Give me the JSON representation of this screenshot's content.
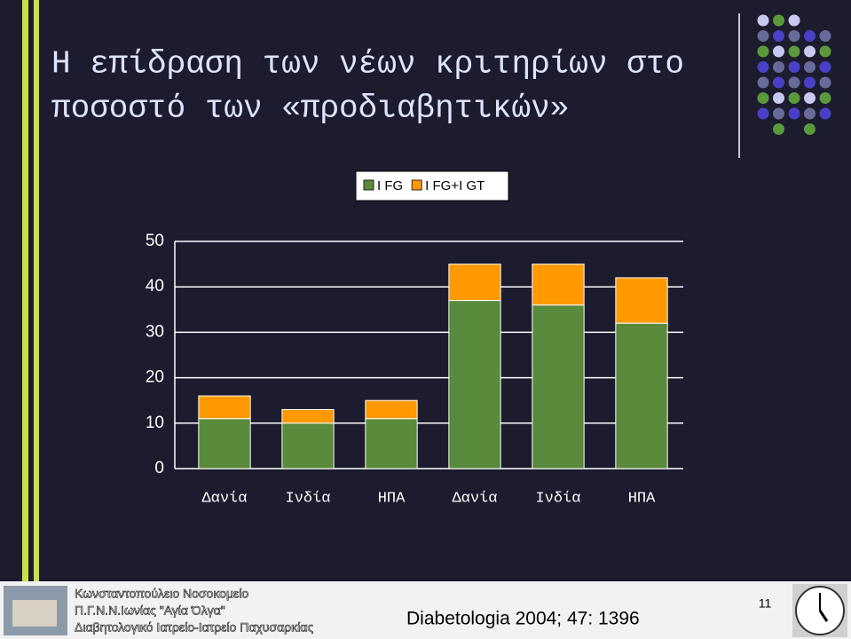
{
  "slide": {
    "title_lines": [
      "Η επίδραση των νέων κριτηρίων στο",
      "ποσοστό των «προδιαβητικών»"
    ],
    "footer_lines": [
      "Κωνσταντοπούλειο Νοσοκομείο",
      "Π.Γ.Ν.Ν.Ιωνίας \"Αγία Όλγα\"",
      "Διαβητολογικό Ιατρείο-Ιατρείο Παχυσαρκίας"
    ],
    "citation": "Diabetologia 2004; 47: 1396",
    "page_number": "11"
  },
  "chart_data": {
    "type": "bar",
    "stacked": true,
    "categories": [
      "Δανία",
      "Ινδία",
      "ΗΠΑ",
      "Δανία",
      "Ινδία",
      "ΗΠΑ"
    ],
    "series": [
      {
        "name": "I FG",
        "color": "#5a8a3c",
        "values": [
          11,
          10,
          11,
          37,
          36,
          32
        ]
      },
      {
        "name": "I FG+I GT",
        "color": "#ff9900",
        "values": [
          5,
          3,
          4,
          8,
          9,
          10
        ]
      }
    ],
    "ylim": [
      0,
      50
    ],
    "yticks": [
      0,
      10,
      20,
      30,
      40,
      50
    ],
    "grid": true,
    "legend": "top"
  }
}
